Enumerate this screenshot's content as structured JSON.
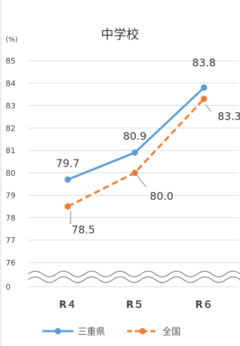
{
  "chart_data": {
    "type": "line",
    "title": "中学校",
    "unit_label": "(%)",
    "categories": [
      "R４",
      "R５",
      "R６"
    ],
    "y_ticks": [
      "85",
      "84",
      "83",
      "82",
      "81",
      "80",
      "79",
      "78",
      "77",
      "76",
      "0"
    ],
    "y_axis_break": true,
    "ylim": [
      76,
      85
    ],
    "grid": true,
    "legend_position": "bottom",
    "series": [
      {
        "name": "三重県",
        "values": [
          79.7,
          80.9,
          83.8
        ],
        "labels": [
          "79.7",
          "80.9",
          "83.8"
        ],
        "color": "#5b9bd5",
        "line_style": "solid"
      },
      {
        "name": "全国",
        "values": [
          78.5,
          80.0,
          83.3
        ],
        "labels": [
          "78.5",
          "80.0",
          "83.3"
        ],
        "color": "#ed7d31",
        "line_style": "dashed"
      }
    ]
  }
}
